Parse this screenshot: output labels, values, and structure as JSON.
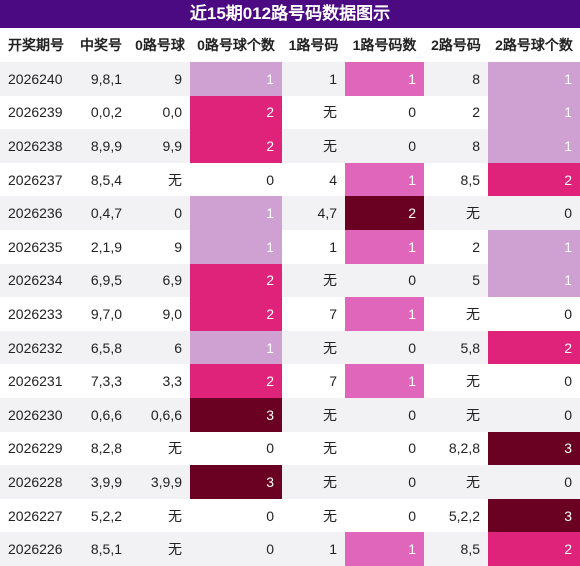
{
  "title": "近15期012路号码数据图示",
  "table": {
    "header": [
      "开奖期号",
      "中奖号",
      "0路号球",
      "0路号球个数",
      "1路号码",
      "1路号码数",
      "2路号码",
      "2路号球个数"
    ],
    "rows": [
      [
        "2026240",
        "9,8,1",
        "9",
        1,
        "1",
        1,
        "8",
        1
      ],
      [
        "2026239",
        "0,0,2",
        "0,0",
        2,
        "无",
        0,
        "2",
        1
      ],
      [
        "2026238",
        "8,9,9",
        "9,9",
        2,
        "无",
        0,
        "8",
        1
      ],
      [
        "2026237",
        "8,5,4",
        "无",
        0,
        "4",
        1,
        "8,5",
        2
      ],
      [
        "2026236",
        "0,4,7",
        "0",
        1,
        "4,7",
        2,
        "无",
        0
      ],
      [
        "2026235",
        "2,1,9",
        "9",
        1,
        "1",
        1,
        "2",
        1
      ],
      [
        "2026234",
        "6,9,5",
        "6,9",
        2,
        "无",
        0,
        "5",
        1
      ],
      [
        "2026233",
        "9,7,0",
        "9,0",
        2,
        "7",
        1,
        "无",
        0
      ],
      [
        "2026232",
        "6,5,8",
        "6",
        1,
        "无",
        0,
        "5,8",
        2
      ],
      [
        "2026231",
        "7,3,3",
        "3,3",
        2,
        "7",
        1,
        "无",
        0
      ],
      [
        "2026230",
        "0,6,6",
        "0,6,6",
        3,
        "无",
        0,
        "无",
        0
      ],
      [
        "2026229",
        "8,2,8",
        "无",
        0,
        "无",
        0,
        "8,2,8",
        3
      ],
      [
        "2026228",
        "3,9,9",
        "3,9,9",
        3,
        "无",
        0,
        "无",
        0
      ],
      [
        "2026227",
        "5,2,2",
        "无",
        0,
        "无",
        0,
        "5,2,2",
        3
      ],
      [
        "2026226",
        "8,5,1",
        "无",
        0,
        "1",
        1,
        "8,5",
        2
      ]
    ]
  }
}
